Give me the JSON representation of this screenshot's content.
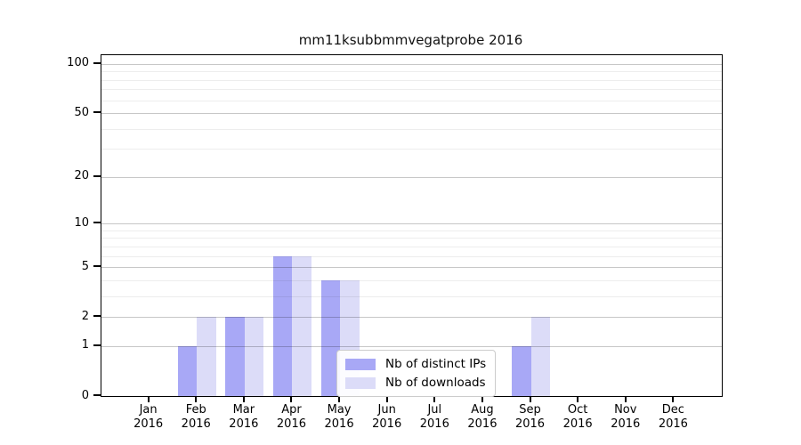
{
  "figure": {
    "title": "mm11ksubbmmvegatprobe 2016"
  },
  "chart_data": {
    "type": "bar",
    "title": "mm11ksubbmmvegatprobe 2016",
    "months": [
      "Jan",
      "Feb",
      "Mar",
      "Apr",
      "May",
      "Jun",
      "Jul",
      "Aug",
      "Sep",
      "Oct",
      "Nov",
      "Dec"
    ],
    "year": "2016",
    "categories": [
      "Jan 2016",
      "Feb 2016",
      "Mar 2016",
      "Apr 2016",
      "May 2016",
      "Jun 2016",
      "Jul 2016",
      "Aug 2016",
      "Sep 2016",
      "Oct 2016",
      "Nov 2016",
      "Dec 2016"
    ],
    "series": [
      {
        "name": "Nb of distinct IPs",
        "color": "#a8a8f6",
        "values": [
          0,
          1,
          2,
          6,
          4,
          0,
          0,
          0,
          1,
          0,
          0,
          0
        ]
      },
      {
        "name": "Nb of downloads",
        "color": "#dcdcf8",
        "values": [
          0,
          2,
          2,
          6,
          4,
          0,
          0,
          0,
          2,
          0,
          0,
          0
        ]
      }
    ],
    "y_axis": {
      "scale": "log1p",
      "major_ticks": [
        0,
        1,
        2,
        5,
        10,
        20,
        50,
        100
      ],
      "minor_ticks": [
        3,
        4,
        6,
        7,
        8,
        9,
        30,
        40,
        60,
        70,
        80,
        90
      ],
      "ylim": [
        0,
        113
      ]
    },
    "xlabel": "",
    "ylabel": "",
    "grid": "on",
    "legend": {
      "entries": [
        "Nb of distinct IPs",
        "Nb of downloads"
      ],
      "position": "lower center"
    }
  },
  "colors": {
    "distinct_ips": "#a8a8f6",
    "downloads": "#dcdcf8",
    "grid_major": "rgba(0,0,0,0.22)",
    "grid_minor": "rgba(0,0,0,0.07)",
    "spine": "#000000"
  }
}
